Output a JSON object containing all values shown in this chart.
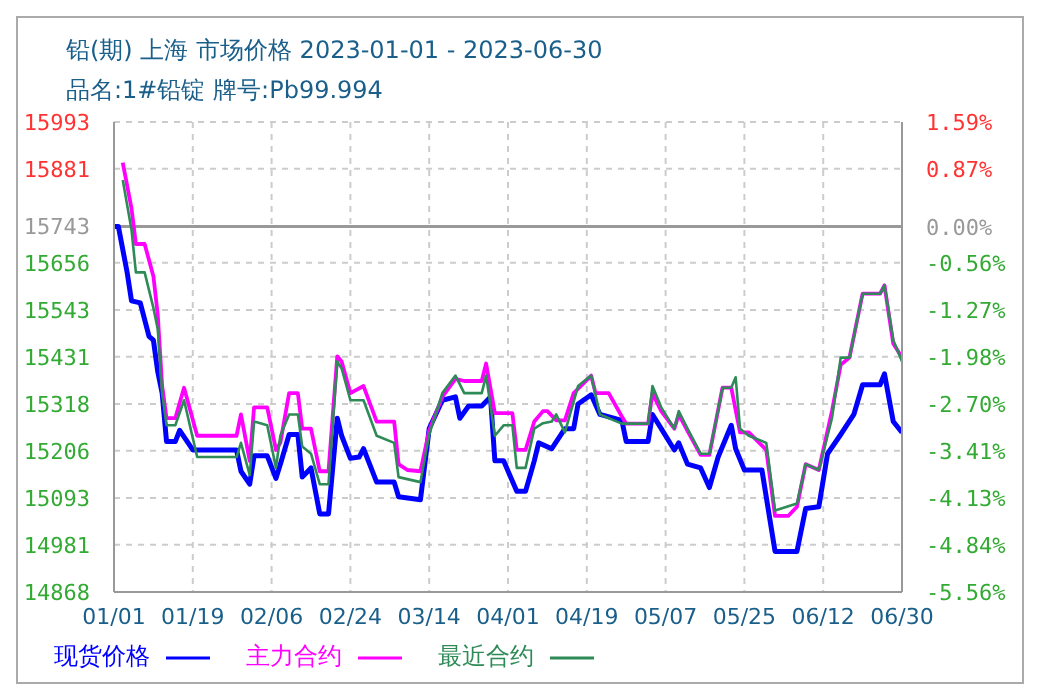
{
  "chart_data": {
    "type": "line",
    "title": "铅(期) 上海 市场价格 2023-01-01 - 2023-06-30",
    "subtitle": "品名:1#铅锭 牌号:Pb99.994",
    "xlim": [
      "2023-01-01",
      "2023-06-30"
    ],
    "xticks": [
      {
        "value": "2023-01-01",
        "label": "01/01"
      },
      {
        "value": "2023-01-19",
        "label": "01/19"
      },
      {
        "value": "2023-02-06",
        "label": "02/06"
      },
      {
        "value": "2023-02-24",
        "label": "02/24"
      },
      {
        "value": "2023-03-14",
        "label": "03/14"
      },
      {
        "value": "2023-04-01",
        "label": "04/01"
      },
      {
        "value": "2023-04-19",
        "label": "04/19"
      },
      {
        "value": "2023-05-07",
        "label": "05/07"
      },
      {
        "value": "2023-05-25",
        "label": "05/25"
      },
      {
        "value": "2023-06-12",
        "label": "06/12"
      },
      {
        "value": "2023-06-30",
        "label": "06/30"
      }
    ],
    "ylim": [
      14868,
      15993
    ],
    "yticks": [
      14868,
      14981,
      15093,
      15206,
      15318,
      15431,
      15543,
      15656,
      15743,
      15881,
      15993
    ],
    "y2lim": [
      -5.56,
      1.59
    ],
    "y2ticks": [
      {
        "value": -5.56,
        "label": "-5.56%"
      },
      {
        "value": -4.84,
        "label": "-4.84%"
      },
      {
        "value": -4.13,
        "label": "-4.13%"
      },
      {
        "value": -3.41,
        "label": "-3.41%"
      },
      {
        "value": -2.7,
        "label": "-2.70%"
      },
      {
        "value": -1.98,
        "label": "-1.98%"
      },
      {
        "value": -1.27,
        "label": "-1.27%"
      },
      {
        "value": -0.56,
        "label": "-0.56%"
      },
      {
        "value": 0,
        "label": "0.00%"
      },
      {
        "value": 0.87,
        "label": "0.87%"
      },
      {
        "value": 1.59,
        "label": "1.59%"
      }
    ],
    "ref_lines": [
      {
        "axis": "y",
        "value": 15743,
        "color": "#999999"
      }
    ],
    "grid": true,
    "legend": "bottom",
    "line_style": "solid",
    "marker": "none",
    "series": [
      {
        "name": "现货价格",
        "color": "#0000ff",
        "x": [
          "2023-01-01",
          "2023-01-02",
          "2023-01-04",
          "2023-01-05",
          "2023-01-07",
          "2023-01-09",
          "2023-01-10",
          "2023-01-11",
          "2023-01-12",
          "2023-01-13",
          "2023-01-15",
          "2023-01-16",
          "2023-01-19",
          "2023-01-29",
          "2023-01-30",
          "2023-02-01",
          "2023-02-02",
          "2023-02-05",
          "2023-02-07",
          "2023-02-08",
          "2023-02-10",
          "2023-02-12",
          "2023-02-13",
          "2023-02-15",
          "2023-02-17",
          "2023-02-19",
          "2023-02-21",
          "2023-02-22",
          "2023-02-24",
          "2023-02-26",
          "2023-02-27",
          "2023-03-02",
          "2023-03-06",
          "2023-03-07",
          "2023-03-12",
          "2023-03-14",
          "2023-03-17",
          "2023-03-20",
          "2023-03-21",
          "2023-03-23",
          "2023-03-26",
          "2023-03-28",
          "2023-03-29",
          "2023-03-31",
          "2023-04-03",
          "2023-04-05",
          "2023-04-07",
          "2023-04-08",
          "2023-04-11",
          "2023-04-14",
          "2023-04-16",
          "2023-04-17",
          "2023-04-20",
          "2023-04-22",
          "2023-04-27",
          "2023-04-28",
          "2023-05-03",
          "2023-05-04",
          "2023-05-06",
          "2023-05-09",
          "2023-05-10",
          "2023-05-12",
          "2023-05-15",
          "2023-05-17",
          "2023-05-19",
          "2023-05-22",
          "2023-05-23",
          "2023-05-25",
          "2023-05-29",
          "2023-06-01",
          "2023-06-06",
          "2023-06-08",
          "2023-06-11",
          "2023-06-13",
          "2023-06-16",
          "2023-06-19",
          "2023-06-21",
          "2023-06-25",
          "2023-06-26",
          "2023-06-28",
          "2023-06-30"
        ],
        "values": [
          15743,
          15743,
          15633,
          15565,
          15560,
          15480,
          15471,
          15395,
          15344,
          15228,
          15228,
          15255,
          15208,
          15208,
          15157,
          15126,
          15194,
          15194,
          15140,
          15174,
          15245,
          15245,
          15143,
          15165,
          15055,
          15055,
          15284,
          15242,
          15188,
          15191,
          15211,
          15131,
          15131,
          15096,
          15089,
          15259,
          15327,
          15335,
          15284,
          15313,
          15313,
          15335,
          15182,
          15182,
          15109,
          15109,
          15182,
          15225,
          15211,
          15259,
          15259,
          15318,
          15340,
          15293,
          15279,
          15228,
          15228,
          15293,
          15259,
          15208,
          15225,
          15174,
          15165,
          15118,
          15191,
          15267,
          15211,
          15160,
          15160,
          14965,
          14965,
          15068,
          15072,
          15199,
          15245,
          15293,
          15364,
          15364,
          15390,
          15276,
          15250
        ]
      },
      {
        "name": "主力合约",
        "color": "#ff00ff",
        "x": [
          "2023-01-03",
          "2023-01-05",
          "2023-01-06",
          "2023-01-08",
          "2023-01-10",
          "2023-01-11",
          "2023-01-12",
          "2023-01-13",
          "2023-01-15",
          "2023-01-17",
          "2023-01-20",
          "2023-01-29",
          "2023-01-30",
          "2023-02-01",
          "2023-02-02",
          "2023-02-05",
          "2023-02-07",
          "2023-02-08",
          "2023-02-10",
          "2023-02-12",
          "2023-02-13",
          "2023-02-15",
          "2023-02-17",
          "2023-02-19",
          "2023-02-21",
          "2023-02-22",
          "2023-02-24",
          "2023-02-27",
          "2023-03-02",
          "2023-03-06",
          "2023-03-07",
          "2023-03-09",
          "2023-03-12",
          "2023-03-14",
          "2023-03-17",
          "2023-03-20",
          "2023-03-22",
          "2023-03-26",
          "2023-03-27",
          "2023-03-29",
          "2023-04-02",
          "2023-04-03",
          "2023-04-05",
          "2023-04-07",
          "2023-04-09",
          "2023-04-10",
          "2023-04-12",
          "2023-04-14",
          "2023-04-16",
          "2023-04-20",
          "2023-04-21",
          "2023-04-24",
          "2023-04-27",
          "2023-04-28",
          "2023-05-03",
          "2023-05-04",
          "2023-05-06",
          "2023-05-09",
          "2023-05-10",
          "2023-05-12",
          "2023-05-15",
          "2023-05-17",
          "2023-05-20",
          "2023-05-22",
          "2023-05-24",
          "2023-05-26",
          "2023-05-30",
          "2023-06-01",
          "2023-06-04",
          "2023-06-06",
          "2023-06-08",
          "2023-06-11",
          "2023-06-14",
          "2023-06-16",
          "2023-06-18",
          "2023-06-21",
          "2023-06-25",
          "2023-06-26",
          "2023-06-28",
          "2023-06-30"
        ],
        "values": [
          15896,
          15786,
          15701,
          15701,
          15624,
          15531,
          15361,
          15284,
          15284,
          15357,
          15242,
          15242,
          15293,
          15182,
          15310,
          15310,
          15208,
          15225,
          15344,
          15344,
          15259,
          15259,
          15157,
          15157,
          15432,
          15420,
          15344,
          15361,
          15276,
          15276,
          15174,
          15160,
          15157,
          15255,
          15335,
          15378,
          15373,
          15373,
          15415,
          15296,
          15296,
          15208,
          15208,
          15276,
          15301,
          15301,
          15279,
          15279,
          15344,
          15386,
          15344,
          15344,
          15288,
          15271,
          15271,
          15344,
          15301,
          15259,
          15293,
          15254,
          15196,
          15196,
          15357,
          15357,
          15250,
          15250,
          15208,
          15050,
          15050,
          15072,
          15174,
          15160,
          15301,
          15412,
          15429,
          15582,
          15582,
          15602,
          15463,
          15429
        ]
      },
      {
        "name": "最近合约",
        "color": "#2e8b57",
        "x": [
          "2023-01-03",
          "2023-01-05",
          "2023-01-06",
          "2023-01-08",
          "2023-01-10",
          "2023-01-11",
          "2023-01-12",
          "2023-01-13",
          "2023-01-15",
          "2023-01-17",
          "2023-01-20",
          "2023-01-29",
          "2023-01-30",
          "2023-02-01",
          "2023-02-02",
          "2023-02-05",
          "2023-02-07",
          "2023-02-08",
          "2023-02-10",
          "2023-02-12",
          "2023-02-13",
          "2023-02-15",
          "2023-02-17",
          "2023-02-19",
          "2023-02-21",
          "2023-02-22",
          "2023-02-24",
          "2023-02-27",
          "2023-03-02",
          "2023-03-06",
          "2023-03-07",
          "2023-03-12",
          "2023-03-14",
          "2023-03-17",
          "2023-03-20",
          "2023-03-22",
          "2023-03-26",
          "2023-03-27",
          "2023-03-29",
          "2023-03-31",
          "2023-04-02",
          "2023-04-03",
          "2023-04-05",
          "2023-04-07",
          "2023-04-09",
          "2023-04-11",
          "2023-04-12",
          "2023-04-14",
          "2023-04-17",
          "2023-04-20",
          "2023-04-22",
          "2023-04-27",
          "2023-05-03",
          "2023-05-04",
          "2023-05-06",
          "2023-05-09",
          "2023-05-10",
          "2023-05-12",
          "2023-05-15",
          "2023-05-17",
          "2023-05-20",
          "2023-05-22",
          "2023-05-23",
          "2023-05-24",
          "2023-05-26",
          "2023-05-30",
          "2023-06-01",
          "2023-06-06",
          "2023-06-08",
          "2023-06-11",
          "2023-06-14",
          "2023-06-16",
          "2023-06-18",
          "2023-06-21",
          "2023-06-25",
          "2023-06-26",
          "2023-06-28",
          "2023-06-30"
        ],
        "values": [
          15854,
          15735,
          15633,
          15633,
          15548,
          15497,
          15344,
          15267,
          15267,
          15327,
          15191,
          15191,
          15225,
          15148,
          15276,
          15267,
          15165,
          15242,
          15293,
          15293,
          15216,
          15199,
          15126,
          15126,
          15420,
          15403,
          15327,
          15327,
          15242,
          15225,
          15143,
          15131,
          15245,
          15344,
          15386,
          15344,
          15344,
          15386,
          15242,
          15267,
          15267,
          15165,
          15165,
          15259,
          15272,
          15276,
          15293,
          15250,
          15361,
          15386,
          15293,
          15271,
          15271,
          15361,
          15310,
          15259,
          15301,
          15259,
          15199,
          15199,
          15357,
          15357,
          15382,
          15259,
          15242,
          15225,
          15063,
          15080,
          15174,
          15160,
          15284,
          15429,
          15429,
          15582,
          15582,
          15602,
          15471,
          15420
        ]
      }
    ]
  }
}
